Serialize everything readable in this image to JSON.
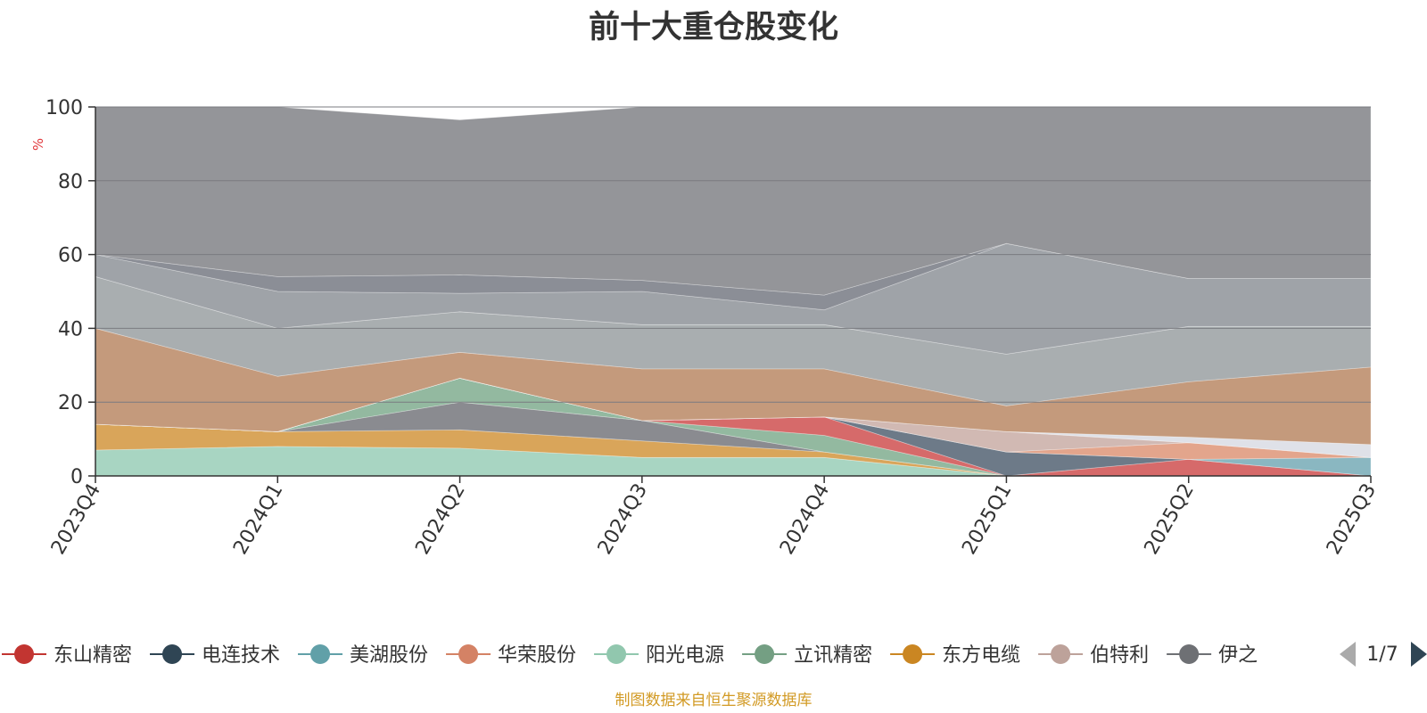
{
  "chart_data": {
    "type": "area",
    "stacked": true,
    "title": "前十大重仓股变化",
    "ylabel": "%",
    "ylim": [
      0,
      100
    ],
    "yticks": [
      0,
      20,
      40,
      60,
      80,
      100
    ],
    "x": [
      "2023Q4",
      "2024Q1",
      "2024Q2",
      "2024Q3",
      "2024Q4",
      "2025Q1",
      "2025Q2",
      "2025Q3"
    ],
    "series": [
      {
        "name": "阳光电源",
        "color": "#a8d5c2",
        "values": [
          7,
          8,
          7.5,
          5,
          5,
          0,
          0,
          0
        ]
      },
      {
        "name": "东方电缆",
        "color": "#d9a55a",
        "values": [
          7,
          4,
          5,
          4.5,
          1.5,
          0,
          0,
          0
        ]
      },
      {
        "name": "",
        "color": "#8a8b90",
        "values": [
          0,
          0,
          7.5,
          5.5,
          0,
          0,
          0,
          0
        ]
      },
      {
        "name": "立讯精密",
        "color": "#93b9a0",
        "values": [
          0,
          0,
          6.5,
          0,
          4.5,
          0,
          0,
          0
        ]
      },
      {
        "name": "东山精密",
        "color": "#d66a6a",
        "values": [
          0,
          0,
          0,
          0,
          5,
          0,
          4.5,
          0
        ]
      },
      {
        "name": "电连技术",
        "color": "#6d7a88",
        "values": [
          0,
          0,
          0,
          0,
          0,
          6.5,
          0,
          0
        ]
      },
      {
        "name": "美湖股份",
        "color": "#8ab7c1",
        "values": [
          0,
          0,
          0,
          0,
          0,
          0,
          0,
          5
        ]
      },
      {
        "name": "华荣股份",
        "color": "#e3a58c",
        "values": [
          0,
          0,
          0,
          0,
          0,
          0,
          4.5,
          0
        ]
      },
      {
        "name": "伯特利",
        "color": "#d1b9b3",
        "values": [
          0,
          0,
          0,
          0,
          0,
          5.5,
          0,
          0
        ]
      },
      {
        "name": "",
        "color": "#dfe1e8",
        "values": [
          0,
          0,
          0,
          0,
          0,
          0,
          1.5,
          3.5
        ]
      },
      {
        "name": "",
        "color": "#c49a7c",
        "values": [
          26,
          15,
          7,
          14,
          13,
          7,
          15,
          21
        ]
      },
      {
        "name": "",
        "color": "#a9aeb0",
        "values": [
          14,
          13,
          11,
          12,
          12,
          14,
          15,
          11
        ]
      },
      {
        "name": "",
        "color": "#9fa3a8",
        "values": [
          6,
          10,
          5,
          9,
          4,
          30,
          13,
          13
        ]
      },
      {
        "name": "",
        "color": "#8b8e96",
        "values": [
          0,
          4,
          5,
          3,
          4,
          0,
          0,
          0
        ]
      },
      {
        "name": "",
        "color": "#949599",
        "values": [
          40,
          46,
          42,
          47,
          51,
          37,
          48,
          47
        ]
      }
    ]
  },
  "legend": {
    "items": [
      {
        "label": "东山精密",
        "color": "#c23531"
      },
      {
        "label": "电连技术",
        "color": "#2f4554"
      },
      {
        "label": "美湖股份",
        "color": "#61a0a8"
      },
      {
        "label": "华荣股份",
        "color": "#d48265"
      },
      {
        "label": "阳光电源",
        "color": "#91c7ae"
      },
      {
        "label": "立讯精密",
        "color": "#749f83"
      },
      {
        "label": "东方电缆",
        "color": "#ca8622"
      },
      {
        "label": "伯特利",
        "color": "#bda29a"
      },
      {
        "label": "伊之",
        "color": "#6e7074"
      }
    ],
    "page": "1/7"
  },
  "source": "制图数据来自恒生聚源数据库"
}
